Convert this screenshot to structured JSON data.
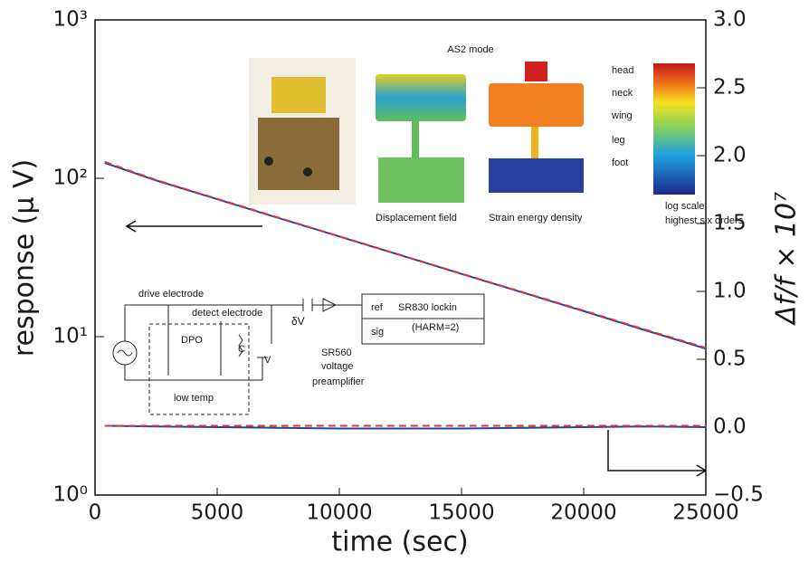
{
  "chart_data": {
    "type": "line",
    "yscale": "log",
    "xlabel": "time (sec)",
    "ylabel": "response (μ V)",
    "y2label": "Δf/f × 10⁷",
    "x": [
      400,
      2500,
      5000,
      7500,
      10000,
      12500,
      15000,
      17500,
      20000,
      22500,
      25000
    ],
    "series": [
      {
        "color": "#2a3f9e",
        "values": [
          125,
          96.9,
          73.8,
          56.2,
          42.9,
          32.7,
          24.9,
          19.0,
          14.5,
          11.0,
          8.4
        ]
      },
      {
        "color": "#d9363e",
        "dashed": true,
        "values": [
          127,
          97.5,
          74.2,
          56.5,
          43.0,
          32.8,
          25.0,
          19.1,
          14.6,
          11.1,
          8.5
        ]
      },
      {
        "color": "#2a3f9e",
        "axis": "y2",
        "values": [
          0.01,
          0.005,
          0.0,
          -0.005,
          -0.01,
          -0.01,
          -0.01,
          -0.005,
          0.0,
          0.005,
          0.0
        ]
      },
      {
        "color": "#d9363e",
        "dashed": true,
        "axis": "y2",
        "values": [
          0.01,
          0.01,
          0.01,
          0.01,
          0.01,
          0.01,
          0.01,
          0.01,
          0.01,
          0.01,
          0.01
        ]
      }
    ],
    "xlim": [
      0,
      25000
    ],
    "xticks": [
      0,
      5000,
      10000,
      15000,
      20000,
      25000
    ],
    "ylim": [
      1,
      1000
    ],
    "yticks": [
      {
        "value": 1,
        "label": "10⁰"
      },
      {
        "value": 10,
        "label": "10¹"
      },
      {
        "value": 100,
        "label": "10²"
      },
      {
        "value": 1000,
        "label": "10³"
      }
    ],
    "y2lim": [
      -0.5,
      3.0
    ],
    "y2ticks": [
      {
        "value": -0.5,
        "label": "−0.5"
      },
      {
        "value": 0,
        "label": "0.0"
      },
      0.5,
      {
        "value": 1,
        "label": "1.0"
      },
      1.5,
      {
        "value": 2,
        "label": "2.0"
      },
      2.5,
      {
        "value": 3,
        "label": "3.0"
      }
    ],
    "annotations": [
      "AS2 mode",
      "head",
      "neck",
      "wing",
      "leg",
      "foot",
      "Displacement field",
      "Strain energy density",
      "log scale,",
      "highest six orders",
      "drive electrode",
      "detect electrode",
      "ref",
      "sig",
      "SR830 lockin",
      "(HARM=2)",
      "δV",
      "SR560",
      "voltage",
      "preamplifier",
      "DPO",
      "C",
      "V",
      "low temp"
    ]
  }
}
